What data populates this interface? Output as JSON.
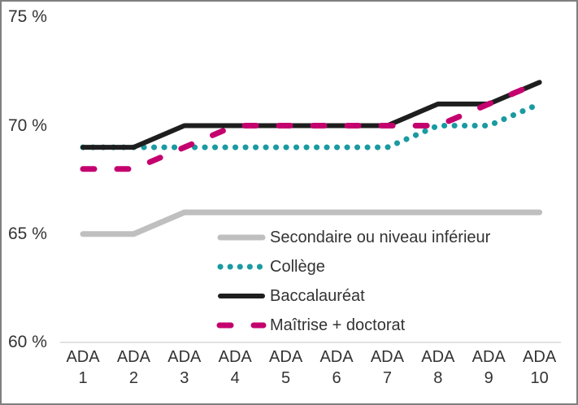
{
  "chart_data": {
    "type": "line",
    "title": "",
    "xlabel": "",
    "ylabel": "",
    "categories": [
      "ADA 1",
      "ADA 2",
      "ADA 3",
      "ADA 4",
      "ADA 5",
      "ADA 6",
      "ADA 7",
      "ADA 8",
      "ADA 9",
      "ADA 10"
    ],
    "series": [
      {
        "name": "Secondaire ou niveau inférieur",
        "color": "#bfbfbf",
        "line_style": "solid",
        "width": 7,
        "values": [
          65,
          65,
          66,
          66,
          66,
          66,
          66,
          66,
          66,
          66
        ]
      },
      {
        "name": "Collège",
        "color": "#1a9aa1",
        "line_style": "dotted",
        "width": 7,
        "values": [
          69,
          69,
          69,
          69,
          69,
          69,
          69,
          70,
          70,
          71
        ]
      },
      {
        "name": "Baccalauréat",
        "color": "#1e1e1e",
        "line_style": "solid",
        "width": 6,
        "values": [
          69,
          69,
          70,
          70,
          70,
          70,
          70,
          71,
          71,
          72
        ]
      },
      {
        "name": "Maîtrise + doctorat",
        "color": "#c4006f",
        "line_style": "dashed",
        "width": 7,
        "values": [
          68,
          68,
          69,
          70,
          70,
          70,
          70,
          70,
          71,
          72
        ]
      }
    ],
    "ylim": [
      60,
      75
    ],
    "yticks": [
      {
        "value": 75,
        "label": "75 %"
      },
      {
        "value": 70,
        "label": "70 %"
      },
      {
        "value": 65,
        "label": "65 %"
      },
      {
        "value": 60,
        "label": "60 %"
      }
    ],
    "legend_position": "inside-lower-left",
    "grid": "baseline-at-60-only",
    "baseline_color": "#d9d9d9",
    "text_color": "#333333",
    "frame_border_color": "#7f7f7f",
    "background_color": "#ffffff"
  }
}
